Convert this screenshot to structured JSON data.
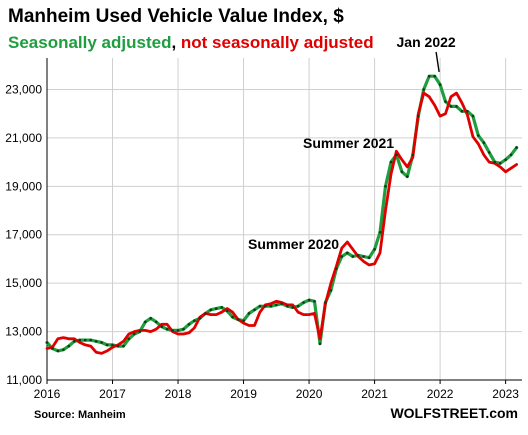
{
  "chart_data": {
    "type": "line",
    "title": "Manheim Used Vehicle Value Index, $",
    "subtitle_parts": [
      {
        "text": "Seasonally adjusted",
        "color": "#1e9e3e"
      },
      {
        "text": ", ",
        "color": "#000000"
      },
      {
        "text": "not seasonally adjusted",
        "color": "#e00000"
      }
    ],
    "source": "Source: Manheim",
    "brand": "WOLFSTREET.com",
    "x_tick_labels": [
      "2016",
      "2017",
      "2018",
      "2019",
      "2020",
      "2021",
      "2022",
      "2023"
    ],
    "x_tick_values": [
      2016,
      2017,
      2018,
      2019,
      2020,
      2021,
      2022,
      2023
    ],
    "xlim": [
      2016,
      2023.25
    ],
    "y_tick_labels": [
      "11,000",
      "13,000",
      "15,000",
      "17,000",
      "19,000",
      "21,000",
      "23,000"
    ],
    "y_tick_values": [
      11000,
      13000,
      15000,
      17000,
      19000,
      21000,
      23000
    ],
    "ylim": [
      11000,
      24300
    ],
    "grid": true,
    "annotations": [
      {
        "text": "Jan 2022",
        "x": 2022.0,
        "y": 23600
      },
      {
        "text": "Summer 2021",
        "x": 2021.4,
        "y": 20300
      },
      {
        "text": "Summer 2020",
        "x": 2020.5,
        "y": 16100
      }
    ],
    "x": [
      2016.0,
      2016.083,
      2016.167,
      2016.25,
      2016.333,
      2016.417,
      2016.5,
      2016.583,
      2016.667,
      2016.75,
      2016.833,
      2016.917,
      2017.0,
      2017.083,
      2017.167,
      2017.25,
      2017.333,
      2017.417,
      2017.5,
      2017.583,
      2017.667,
      2017.75,
      2017.833,
      2017.917,
      2018.0,
      2018.083,
      2018.167,
      2018.25,
      2018.333,
      2018.417,
      2018.5,
      2018.583,
      2018.667,
      2018.75,
      2018.833,
      2018.917,
      2019.0,
      2019.083,
      2019.167,
      2019.25,
      2019.333,
      2019.417,
      2019.5,
      2019.583,
      2019.667,
      2019.75,
      2019.833,
      2019.917,
      2020.0,
      2020.083,
      2020.167,
      2020.25,
      2020.333,
      2020.417,
      2020.5,
      2020.583,
      2020.667,
      2020.75,
      2020.833,
      2020.917,
      2021.0,
      2021.083,
      2021.167,
      2021.25,
      2021.333,
      2021.417,
      2021.5,
      2021.583,
      2021.667,
      2021.75,
      2021.833,
      2021.917,
      2022.0,
      2022.083,
      2022.167,
      2022.25,
      2022.333,
      2022.417,
      2022.5,
      2022.583,
      2022.667,
      2022.75,
      2022.833,
      2022.917,
      2023.0,
      2023.083,
      2023.167
    ],
    "series": [
      {
        "name": "Seasonally adjusted",
        "color": "#1e9e3e",
        "values": [
          12550,
          12300,
          12200,
          12250,
          12400,
          12600,
          12650,
          12650,
          12650,
          12600,
          12550,
          12450,
          12450,
          12400,
          12400,
          12700,
          12900,
          13000,
          13400,
          13550,
          13400,
          13200,
          13100,
          13050,
          13050,
          13100,
          13300,
          13450,
          13550,
          13750,
          13900,
          13950,
          14000,
          13850,
          13600,
          13500,
          13450,
          13750,
          13900,
          14050,
          14050,
          14050,
          14100,
          14150,
          14050,
          14000,
          14050,
          14200,
          14300,
          14250,
          12500,
          14200,
          14700,
          15600,
          16100,
          16250,
          16100,
          16150,
          16100,
          16050,
          16400,
          17100,
          19000,
          20000,
          20300,
          19600,
          19400,
          20300,
          21900,
          23000,
          23550,
          23550,
          23200,
          22500,
          22300,
          22300,
          22100,
          22100,
          21900,
          21100,
          20800,
          20400,
          20000,
          19950,
          20100,
          20300,
          20600
        ]
      },
      {
        "name": "Not seasonally adjusted",
        "color": "#e00000",
        "values": [
          12300,
          12350,
          12700,
          12750,
          12700,
          12700,
          12550,
          12450,
          12400,
          12150,
          12100,
          12200,
          12350,
          12450,
          12600,
          12900,
          13000,
          13050,
          13050,
          13000,
          13100,
          13300,
          13300,
          13000,
          12900,
          12900,
          12950,
          13150,
          13600,
          13750,
          13700,
          13700,
          13800,
          13950,
          13800,
          13500,
          13350,
          13250,
          13250,
          13800,
          14100,
          14150,
          14250,
          14200,
          14100,
          14100,
          13800,
          13700,
          13700,
          13750,
          12700,
          14150,
          15000,
          15700,
          16450,
          16700,
          16400,
          16100,
          15900,
          15750,
          15800,
          16250,
          18000,
          19500,
          20450,
          20100,
          19800,
          20200,
          22000,
          22850,
          22700,
          22350,
          21900,
          22000,
          22700,
          22850,
          22450,
          21950,
          21050,
          20750,
          20300,
          20000,
          19950,
          19800,
          19600,
          19750,
          19900
        ]
      }
    ]
  }
}
